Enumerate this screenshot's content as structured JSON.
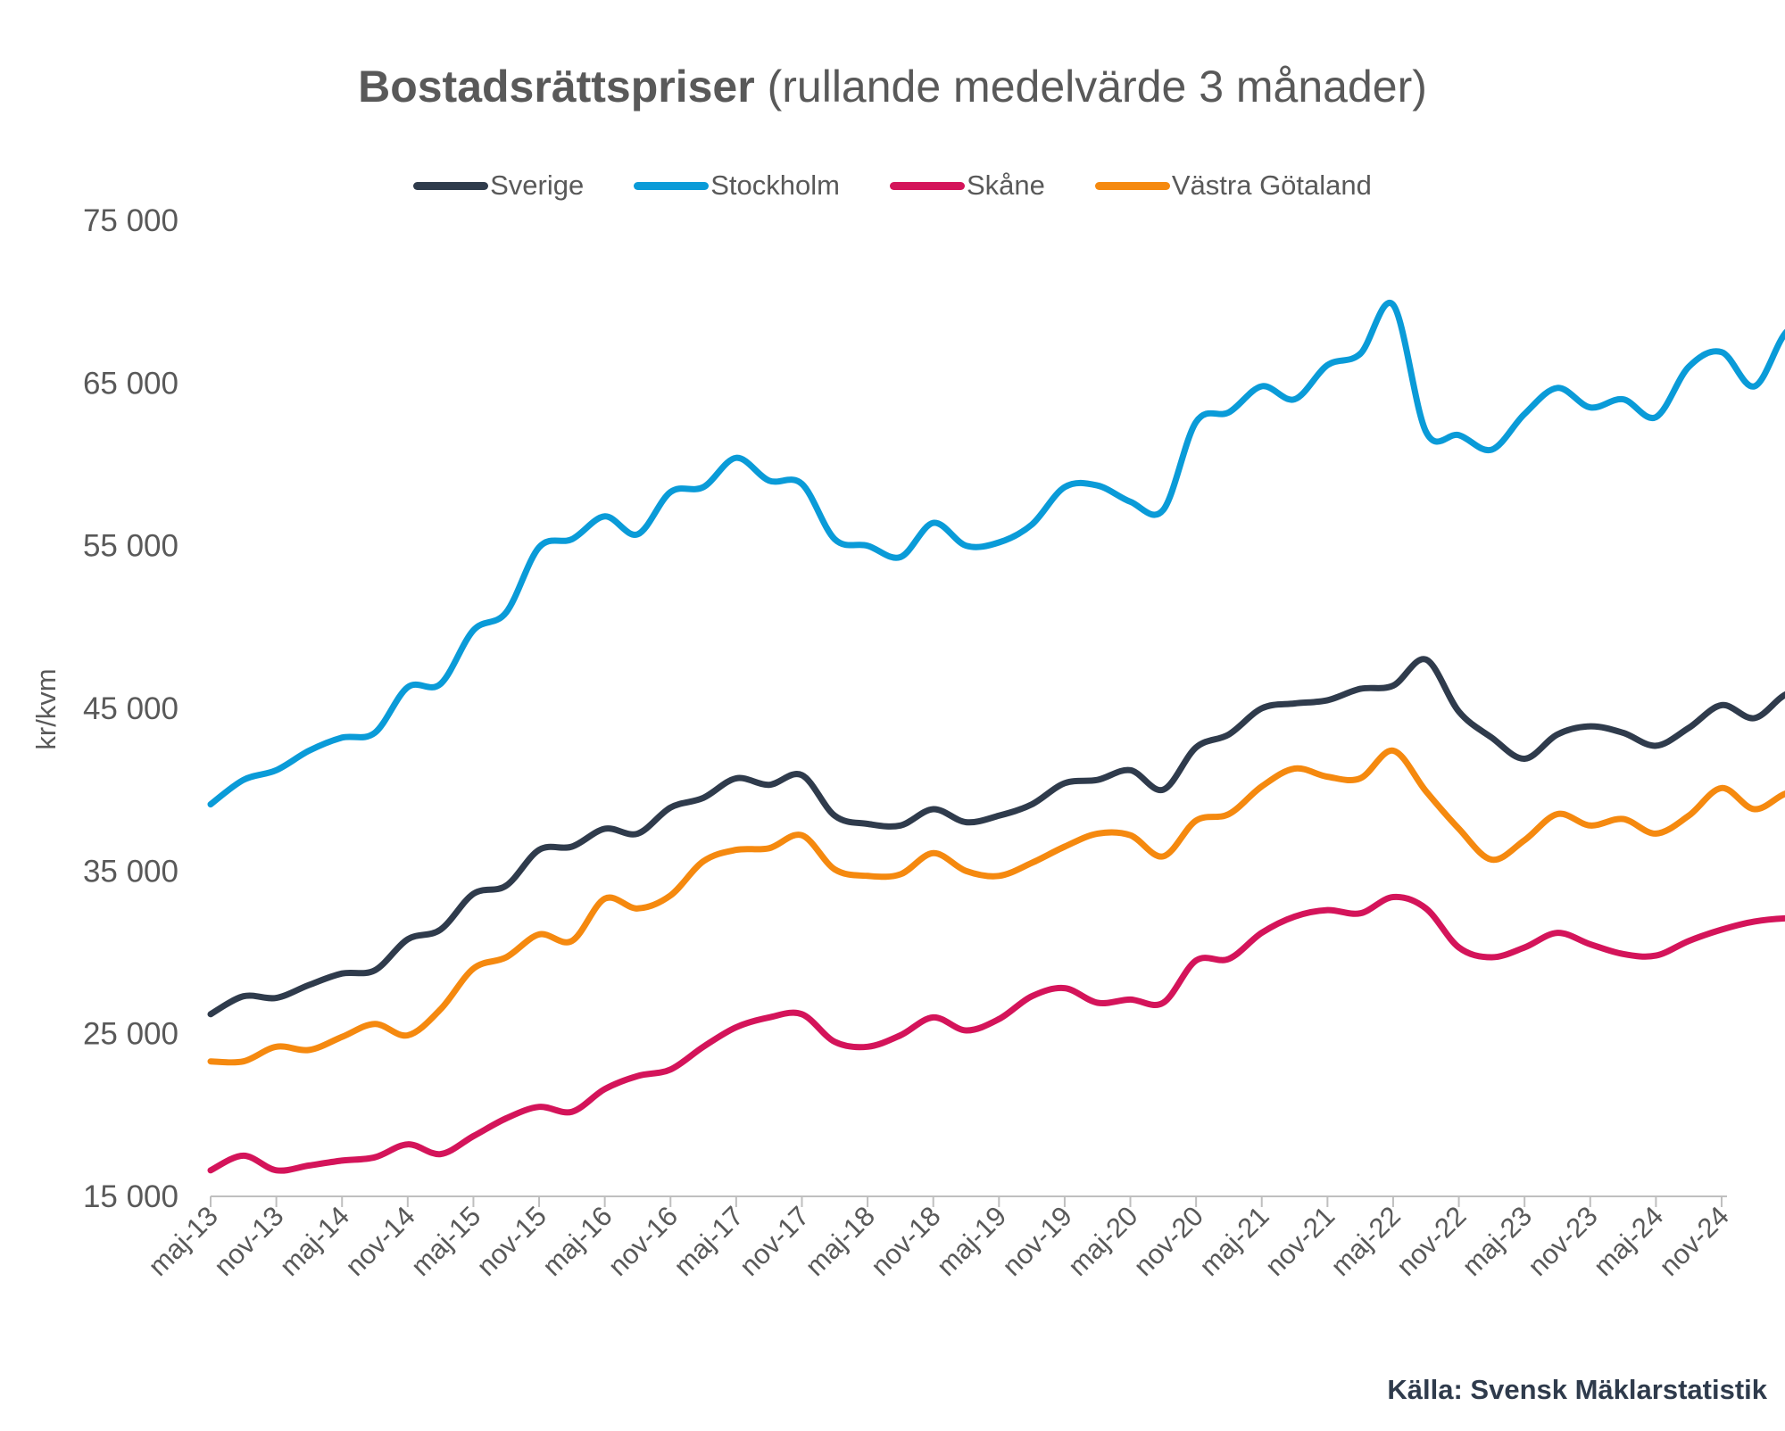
{
  "chart_data": {
    "type": "line",
    "title_bold": "Bostadsrättspriser",
    "title_rest": "(rullande medelvärde 3 månader)",
    "ylabel": "kr/kvm",
    "ylim": [
      15000,
      75000
    ],
    "yticks": [
      15000,
      25000,
      35000,
      45000,
      55000,
      65000,
      75000
    ],
    "ytick_labels": [
      "15 000",
      "25 000",
      "35 000",
      "45 000",
      "55 000",
      "65 000",
      "75 000"
    ],
    "xtick_labels": [
      "maj-13",
      "nov-13",
      "maj-14",
      "nov-14",
      "maj-15",
      "nov-15",
      "maj-16",
      "nov-16",
      "maj-17",
      "nov-17",
      "maj-18",
      "nov-18",
      "maj-19",
      "nov-19",
      "maj-20",
      "nov-20",
      "maj-21",
      "nov-21",
      "maj-22",
      "nov-22",
      "maj-23",
      "nov-23",
      "maj-24",
      "nov-24"
    ],
    "legend_position": "top",
    "grid": false,
    "sample_step_months": 3,
    "series": [
      {
        "name": "Sverige",
        "color": "#2f3b4c",
        "values": [
          26200,
          27300,
          27200,
          28000,
          28700,
          28900,
          30800,
          31400,
          33600,
          34100,
          36300,
          36500,
          37600,
          37300,
          38900,
          39500,
          40700,
          40300,
          40900,
          38400,
          37900,
          37800,
          38800,
          38000,
          38400,
          39100,
          40400,
          40600,
          41200,
          40000,
          42600,
          43400,
          45000,
          45300,
          45500,
          46200,
          46400,
          48000,
          44800,
          43200,
          41900,
          43400,
          43900,
          43500,
          42700,
          43800,
          45200,
          44400,
          45900,
          46000
        ]
      },
      {
        "name": "Stockholm",
        "color": "#0a9bd8",
        "values": [
          39100,
          40600,
          41200,
          42400,
          43200,
          43500,
          46300,
          46500,
          49800,
          50900,
          54900,
          55400,
          56800,
          55700,
          58300,
          58600,
          60400,
          59000,
          58800,
          55400,
          55000,
          54300,
          56400,
          55000,
          55200,
          56300,
          58600,
          58700,
          57700,
          57200,
          62600,
          63200,
          64800,
          64000,
          66100,
          66800,
          69800,
          62000,
          61800,
          60900,
          63100,
          64700,
          63500,
          64000,
          62900,
          66000,
          66900,
          64800,
          68200,
          68600
        ]
      },
      {
        "name": "Skåne",
        "color": "#d4145a",
        "values": [
          16600,
          17500,
          16600,
          16900,
          17200,
          17400,
          18200,
          17600,
          18700,
          19800,
          20500,
          20200,
          21600,
          22400,
          22800,
          24200,
          25400,
          26000,
          26200,
          24500,
          24200,
          24900,
          26000,
          25200,
          25900,
          27300,
          27800,
          26900,
          27100,
          26900,
          29500,
          29600,
          31200,
          32200,
          32600,
          32400,
          33400,
          32700,
          30300,
          29700,
          30300,
          31200,
          30500,
          29900,
          29800,
          30700,
          31400,
          31900,
          32100,
          32100
        ]
      },
      {
        "name": "Västra Götaland",
        "color": "#f5890f",
        "values": [
          23300,
          23300,
          24200,
          24000,
          24800,
          25600,
          24900,
          26500,
          29000,
          29700,
          31100,
          30700,
          33300,
          32700,
          33500,
          35600,
          36300,
          36400,
          37200,
          35100,
          34700,
          34800,
          36100,
          35000,
          34700,
          35500,
          36500,
          37300,
          37200,
          35900,
          38100,
          38500,
          40200,
          41300,
          40800,
          40700,
          42400,
          39900,
          37600,
          35700,
          36900,
          38500,
          37800,
          38200,
          37300,
          38400,
          40100,
          38800,
          39800,
          39900
        ]
      }
    ]
  },
  "source": "Källa: Svensk Mäklarstatistik"
}
